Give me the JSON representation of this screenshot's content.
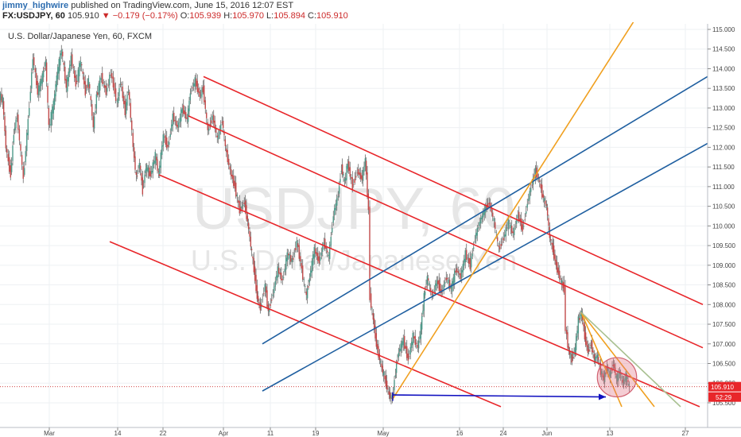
{
  "header": {
    "author": "jimmy_highwire",
    "published": "published on TradingView.com, June 15, 2016 12:07 EST",
    "symbol": "FX:USDJPY, 60",
    "last": "105.910",
    "change_arrow": "▼",
    "change": "−0.179 (−0.17%)",
    "open_label": "O:",
    "open": "105.939",
    "high_label": "H:",
    "high": "105.970",
    "low_label": "L:",
    "low": "105.894",
    "close_label": "C:",
    "close": "105.910"
  },
  "chart_data": {
    "type": "candlestick",
    "title": "U.S. Dollar/Japanese Yen, 60, FXCM",
    "watermark_symbol": "USDJPY, 60",
    "watermark_name": "U.S. Dollar/Japanese Yen",
    "x_tick_labels": [
      "Mar",
      "14",
      "22",
      "Apr",
      "11",
      "19",
      "May",
      "16",
      "24",
      "Jun",
      "13",
      "27"
    ],
    "y_tick_labels": [
      "115.000",
      "114.500",
      "114.000",
      "113.500",
      "113.000",
      "112.500",
      "112.000",
      "111.500",
      "111.000",
      "110.500",
      "110.000",
      "109.500",
      "109.000",
      "108.500",
      "108.000",
      "107.500",
      "107.000",
      "106.500",
      "106.000",
      "105.500"
    ],
    "ylim": [
      105.35,
      115.15
    ],
    "last_price_label": "105.910",
    "countdown_label": "52:29",
    "price_path": [
      [
        0,
        113.3
      ],
      [
        4,
        113.2
      ],
      [
        8,
        112.0
      ],
      [
        14,
        111.3
      ],
      [
        18,
        112.4
      ],
      [
        22,
        112.8
      ],
      [
        30,
        111.2
      ],
      [
        36,
        112.7
      ],
      [
        42,
        114.3
      ],
      [
        48,
        113.4
      ],
      [
        54,
        113.8
      ],
      [
        58,
        114.2
      ],
      [
        62,
        112.5
      ],
      [
        68,
        113.1
      ],
      [
        72,
        113.8
      ],
      [
        78,
        114.5
      ],
      [
        84,
        113.5
      ],
      [
        90,
        114.3
      ],
      [
        96,
        113.6
      ],
      [
        102,
        114.2
      ],
      [
        108,
        113.4
      ],
      [
        112,
        113.7
      ],
      [
        118,
        112.5
      ],
      [
        122,
        113.3
      ],
      [
        128,
        113.8
      ],
      [
        134,
        113.4
      ],
      [
        140,
        113.9
      ],
      [
        148,
        113.1
      ],
      [
        152,
        113.7
      ],
      [
        158,
        112.9
      ],
      [
        162,
        113.5
      ],
      [
        168,
        112.0
      ],
      [
        172,
        111.2
      ],
      [
        176,
        111.6
      ],
      [
        180,
        110.9
      ],
      [
        184,
        111.5
      ],
      [
        190,
        111.3
      ],
      [
        196,
        111.8
      ],
      [
        200,
        111.3
      ],
      [
        206,
        112.3
      ],
      [
        212,
        112.0
      ],
      [
        218,
        112.8
      ],
      [
        224,
        112.5
      ],
      [
        230,
        113.0
      ],
      [
        236,
        112.7
      ],
      [
        240,
        113.4
      ],
      [
        246,
        113.7
      ],
      [
        252,
        113.3
      ],
      [
        256,
        113.5
      ],
      [
        262,
        112.4
      ],
      [
        268,
        112.8
      ],
      [
        274,
        112.2
      ],
      [
        280,
        112.7
      ],
      [
        284,
        112.0
      ],
      [
        290,
        111.4
      ],
      [
        296,
        111.0
      ],
      [
        302,
        110.4
      ],
      [
        308,
        110.6
      ],
      [
        312,
        110.1
      ],
      [
        316,
        109.5
      ],
      [
        320,
        108.9
      ],
      [
        324,
        108.2
      ],
      [
        328,
        107.9
      ],
      [
        334,
        108.5
      ],
      [
        338,
        107.8
      ],
      [
        344,
        108.3
      ],
      [
        350,
        108.9
      ],
      [
        356,
        108.6
      ],
      [
        362,
        109.3
      ],
      [
        368,
        109.1
      ],
      [
        374,
        109.6
      ],
      [
        380,
        108.9
      ],
      [
        386,
        108.2
      ],
      [
        390,
        108.7
      ],
      [
        396,
        109.4
      ],
      [
        402,
        109.1
      ],
      [
        408,
        109.6
      ],
      [
        414,
        109.2
      ],
      [
        420,
        110.3
      ],
      [
        426,
        110.8
      ],
      [
        430,
        111.5
      ],
      [
        434,
        111.1
      ],
      [
        438,
        111.6
      ],
      [
        444,
        111.0
      ],
      [
        450,
        111.4
      ],
      [
        456,
        111.2
      ],
      [
        460,
        111.7
      ],
      [
        464,
        110.4
      ],
      [
        466,
        108.2
      ],
      [
        470,
        107.6
      ],
      [
        474,
        107.0
      ],
      [
        478,
        106.6
      ],
      [
        482,
        106.3
      ],
      [
        486,
        106.0
      ],
      [
        490,
        105.7
      ],
      [
        494,
        105.6
      ],
      [
        498,
        106.3
      ],
      [
        502,
        106.8
      ],
      [
        508,
        107.1
      ],
      [
        514,
        106.6
      ],
      [
        520,
        107.2
      ],
      [
        526,
        106.9
      ],
      [
        530,
        107.4
      ],
      [
        534,
        108.2
      ],
      [
        538,
        108.7
      ],
      [
        544,
        108.2
      ],
      [
        550,
        108.6
      ],
      [
        556,
        108.3
      ],
      [
        562,
        108.7
      ],
      [
        568,
        108.4
      ],
      [
        574,
        108.9
      ],
      [
        580,
        108.7
      ],
      [
        586,
        109.3
      ],
      [
        592,
        109.0
      ],
      [
        598,
        109.7
      ],
      [
        604,
        110.1
      ],
      [
        610,
        110.4
      ],
      [
        616,
        110.6
      ],
      [
        622,
        110.1
      ],
      [
        628,
        109.4
      ],
      [
        634,
        109.7
      ],
      [
        640,
        110.1
      ],
      [
        646,
        109.8
      ],
      [
        652,
        110.3
      ],
      [
        658,
        109.9
      ],
      [
        664,
        110.6
      ],
      [
        670,
        111.1
      ],
      [
        674,
        111.4
      ],
      [
        678,
        111.2
      ],
      [
        684,
        110.7
      ],
      [
        688,
        110.5
      ],
      [
        692,
        109.7
      ],
      [
        696,
        109.4
      ],
      [
        700,
        109.0
      ],
      [
        706,
        108.6
      ],
      [
        710,
        108.4
      ],
      [
        712,
        107.4
      ],
      [
        716,
        106.8
      ],
      [
        720,
        106.6
      ],
      [
        724,
        106.9
      ],
      [
        728,
        107.6
      ],
      [
        732,
        107.8
      ],
      [
        736,
        107.2
      ],
      [
        740,
        106.8
      ],
      [
        744,
        107.0
      ],
      [
        748,
        106.6
      ],
      [
        752,
        106.7
      ],
      [
        756,
        106.3
      ],
      [
        760,
        106.1
      ],
      [
        764,
        106.4
      ],
      [
        768,
        106.2
      ],
      [
        772,
        106.5
      ],
      [
        776,
        106.1
      ],
      [
        780,
        106.3
      ],
      [
        784,
        106.0
      ],
      [
        788,
        106.2
      ],
      [
        792,
        105.91
      ]
    ],
    "trendlines": [
      {
        "color": "#e8262a",
        "role": "channel",
        "p1": [
          256,
          113.8
        ],
        "p2": [
          884,
          108.0
        ]
      },
      {
        "color": "#e8262a",
        "role": "channel",
        "p1": [
          237,
          112.8
        ],
        "p2": [
          884,
          106.9
        ]
      },
      {
        "color": "#e8262a",
        "role": "channel",
        "p1": [
          200,
          111.3
        ],
        "p2": [
          880,
          105.4
        ]
      },
      {
        "color": "#e8262a",
        "role": "channel",
        "p1": [
          138,
          109.6
        ],
        "p2": [
          630,
          105.4
        ]
      },
      {
        "color": "#1f5fa0",
        "role": "channel",
        "p1": [
          330,
          107.0
        ],
        "p2": [
          890,
          113.8
        ]
      },
      {
        "color": "#1f5fa0",
        "role": "channel",
        "p1": [
          330,
          105.8
        ],
        "p2": [
          890,
          112.1
        ]
      },
      {
        "color": "#f0a020",
        "role": "trend",
        "p1": [
          494,
          105.6
        ],
        "p2": [
          797,
          115.2
        ]
      },
      {
        "color": "#f0a020",
        "role": "trend",
        "p1": [
          731,
          107.8
        ],
        "p2": [
          823,
          105.4
        ]
      },
      {
        "color": "#f0a020",
        "role": "trend",
        "p1": [
          731,
          107.8
        ],
        "p2": [
          782,
          105.4
        ]
      },
      {
        "color": "#a8c090",
        "role": "trend",
        "p1": [
          731,
          107.8
        ],
        "p2": [
          856,
          105.4
        ]
      },
      {
        "color": "#1010c0",
        "role": "arrow",
        "p1": [
          494,
          105.7
        ],
        "p2": [
          762,
          105.65
        ]
      }
    ],
    "highlight_circle": {
      "color": "#e07080",
      "center": [
        776,
        106.15
      ],
      "radius_price": 0.5
    }
  }
}
